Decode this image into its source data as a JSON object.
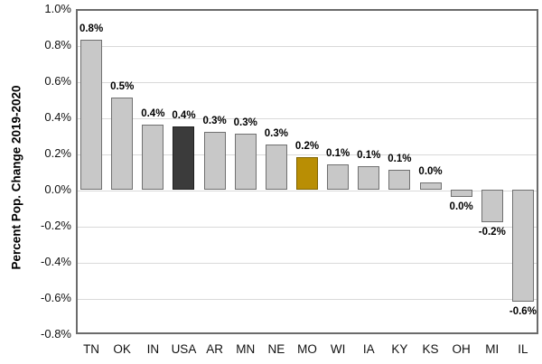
{
  "chart_data": {
    "type": "bar",
    "title": "",
    "xlabel": "",
    "ylabel": "Percent Pop. Change 2019-2020",
    "categories": [
      "TN",
      "OK",
      "IN",
      "USA",
      "AR",
      "MN",
      "NE",
      "MO",
      "WI",
      "IA",
      "KY",
      "KS",
      "OH",
      "MI",
      "IL"
    ],
    "values": [
      0.83,
      0.51,
      0.36,
      0.35,
      0.32,
      0.31,
      0.25,
      0.18,
      0.14,
      0.13,
      0.11,
      0.04,
      -0.04,
      -0.18,
      -0.62
    ],
    "bar_labels": [
      "0.8%",
      "0.5%",
      "0.4%",
      "0.4%",
      "0.3%",
      "0.3%",
      "0.3%",
      "0.2%",
      "0.1%",
      "0.1%",
      "0.1%",
      "0.0%",
      "0.0%",
      "-0.2%",
      "-0.6%"
    ],
    "bar_styles": [
      "default",
      "default",
      "default",
      "dark",
      "default",
      "default",
      "default",
      "gold",
      "default",
      "default",
      "default",
      "default",
      "default",
      "default",
      "default"
    ],
    "ylim": [
      -0.8,
      1.0
    ],
    "ytick_step": 0.2,
    "ytick_labels": [
      "1.0%",
      "0.8%",
      "0.6%",
      "0.4%",
      "0.2%",
      "0.0%",
      "-0.2%",
      "-0.4%",
      "-0.6%",
      "-0.8%"
    ],
    "grid": true,
    "legend": "none",
    "colors": {
      "bar_fill": "#C8C8C8",
      "bar_border": "#707070",
      "dark_fill": "#3B3B3B",
      "dark_border": "#1F1F1F",
      "gold_fill": "#B98E04",
      "gold_border": "#7F6300",
      "grid": "#D9D9D9",
      "plot_border": "#6B6B6B",
      "text": "#000000"
    }
  }
}
